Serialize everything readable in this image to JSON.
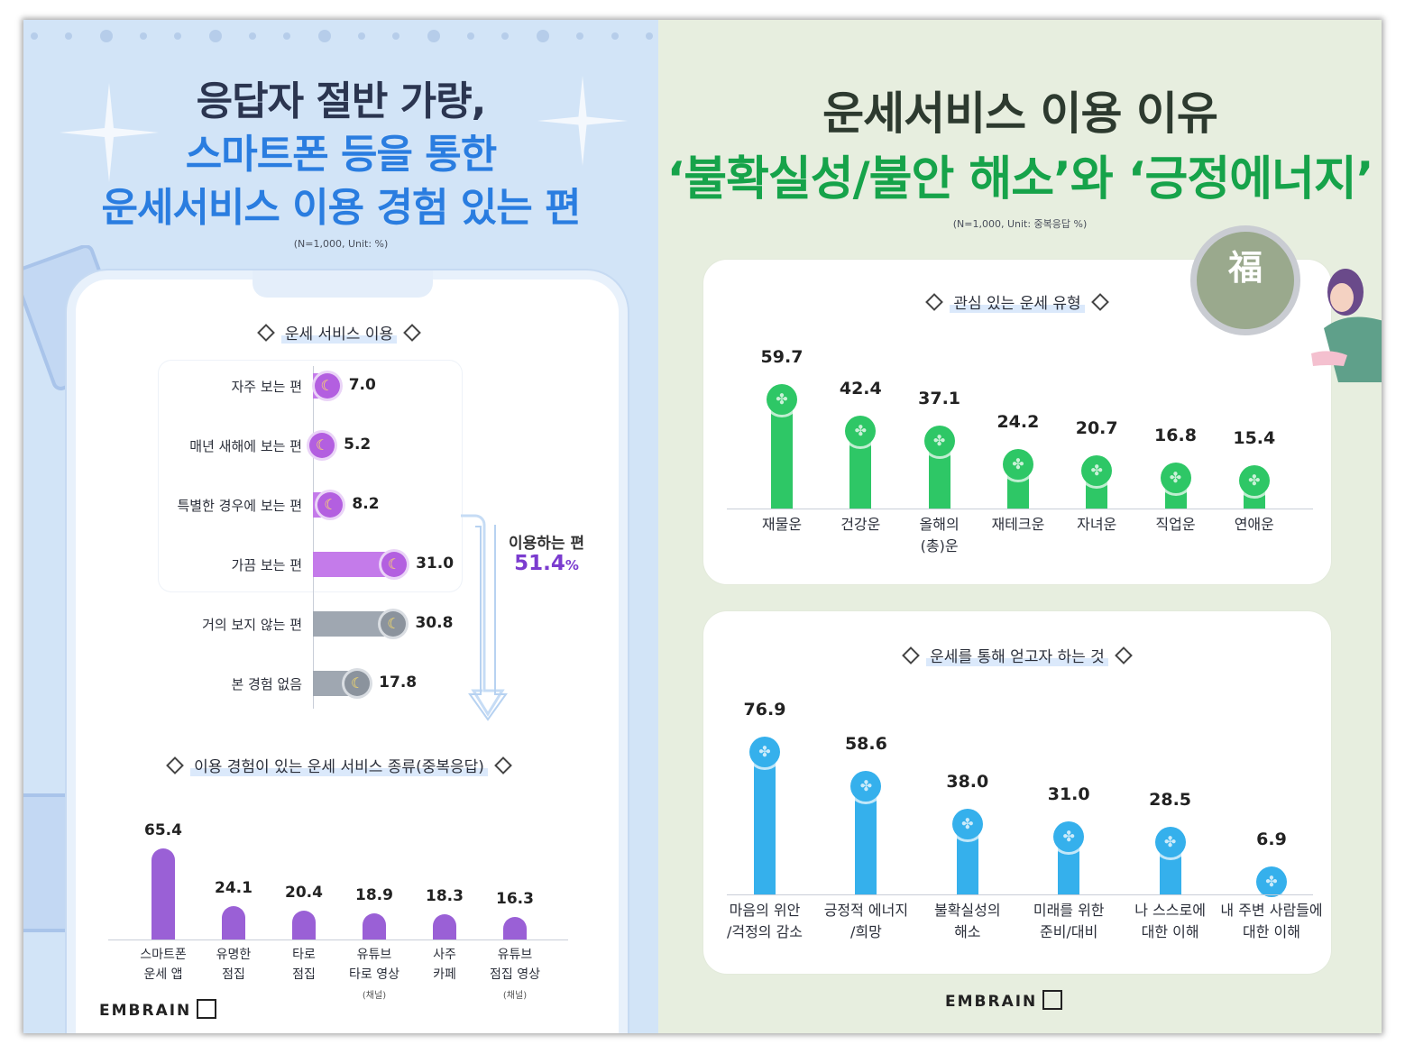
{
  "left": {
    "title_line1": "응답자 절반 가량,",
    "title_line2": "스마트폰 등을 통한",
    "title_line3": "운세서비스 이용 경험 있는 편",
    "note": "(N=1,000, Unit: %)",
    "section1_title": "운세 서비스 이용",
    "section2_title": "이용 경험이 있는 운세 서비스 종류(중복응답)",
    "using_label": "이용하는 편",
    "using_value": "51.4",
    "using_unit": "%",
    "sub_note": "(채널)",
    "logo": "EMBRAIN",
    "colors": {
      "purple": "#c47bea",
      "gray": "#9fa7b1",
      "violet": "#9a60d6",
      "accent": "#7b3ccf"
    }
  },
  "right": {
    "title_line1": "운세서비스 이용 이유",
    "title_line2": "‘불확실성/불안 해소’와 ‘긍정에너지’",
    "note": "(N=1,000, Unit: 중복응답 %)",
    "section1_title": "관심 있는 운세 유형",
    "section2_title": "운세를 통해 얻고자 하는 것",
    "magnifier_char": "福",
    "logo": "EMBRAIN",
    "colors": {
      "green": "#2ec766",
      "blue": "#35b0ec"
    }
  },
  "chart_data": [
    {
      "type": "bar",
      "orientation": "horizontal",
      "title": "운세 서비스 이용",
      "categories": [
        "자주 보는 편",
        "매년 새해에 보는 편",
        "특별한 경우에 보는 편",
        "가끔 보는 편",
        "거의 보지 않는 편",
        "본 경험 없음"
      ],
      "values": [
        7.0,
        5.2,
        8.2,
        31.0,
        30.8,
        17.8
      ],
      "value_labels": [
        "7.0",
        "5.2",
        "8.2",
        "31.0",
        "30.8",
        "17.8"
      ],
      "highlight_group": {
        "label": "이용하는 편",
        "value": 51.4,
        "categories": [
          "자주 보는 편",
          "매년 새해에 보는 편",
          "특별한 경우에 보는 편",
          "가끔 보는 편"
        ]
      }
    },
    {
      "type": "bar",
      "title": "이용 경험이 있는 운세 서비스 종류(중복응답)",
      "categories": [
        [
          "스마트폰",
          "운세 앱"
        ],
        [
          "유명한",
          "점집"
        ],
        [
          "타로",
          "점집"
        ],
        [
          "유튜브",
          "타로 영상"
        ],
        [
          "사주",
          "카페"
        ],
        [
          "유튜브",
          "점집 영상"
        ]
      ],
      "values": [
        65.4,
        24.1,
        20.4,
        18.9,
        18.3,
        16.3
      ],
      "value_labels": [
        "65.4",
        "24.1",
        "20.4",
        "18.9",
        "18.3",
        "16.3"
      ]
    },
    {
      "type": "bar",
      "title": "관심 있는 운세 유형",
      "categories": [
        [
          "재물운"
        ],
        [
          "건강운"
        ],
        [
          "올해의",
          "(총)운"
        ],
        [
          "재테크운"
        ],
        [
          "자녀운"
        ],
        [
          "직업운"
        ],
        [
          "연애운"
        ]
      ],
      "values": [
        59.7,
        42.4,
        37.1,
        24.2,
        20.7,
        16.8,
        15.4
      ],
      "value_labels": [
        "59.7",
        "42.4",
        "37.1",
        "24.2",
        "20.7",
        "16.8",
        "15.4"
      ]
    },
    {
      "type": "bar",
      "title": "운세를 통해 얻고자 하는 것",
      "categories": [
        [
          "마음의 위안",
          "/걱정의 감소"
        ],
        [
          "긍정적 에너지",
          "/희망"
        ],
        [
          "불확실성의",
          "해소"
        ],
        [
          "미래를 위한",
          "준비/대비"
        ],
        [
          "나 스스로에",
          "대한 이해"
        ],
        [
          "내 주변 사람들에",
          "대한 이해"
        ]
      ],
      "values": [
        76.9,
        58.6,
        38.0,
        31.0,
        28.5,
        6.9
      ],
      "value_labels": [
        "76.9",
        "58.6",
        "38.0",
        "31.0",
        "28.5",
        "6.9"
      ]
    }
  ]
}
